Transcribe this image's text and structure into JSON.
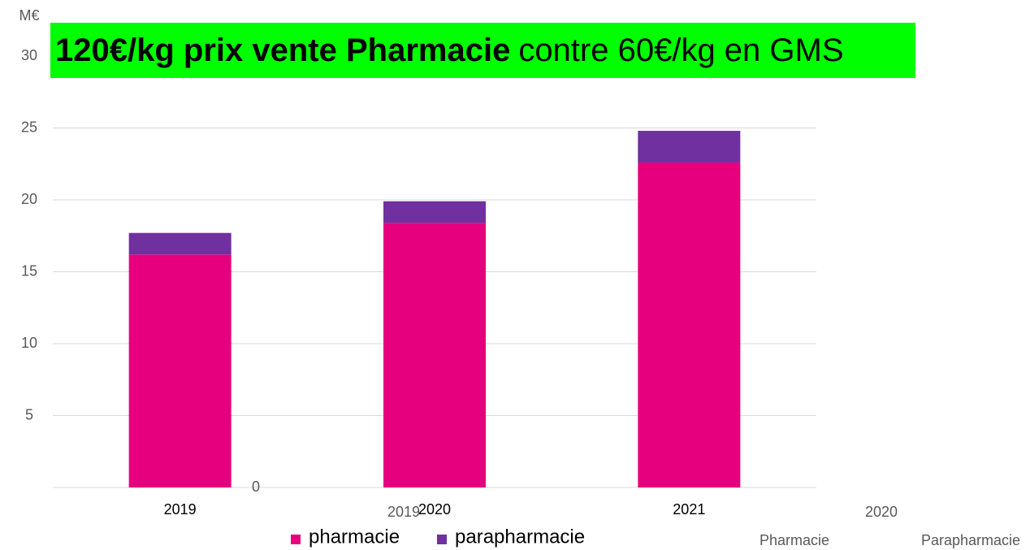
{
  "chart_data": {
    "type": "stacked_bar",
    "title_bold": "120€/kg prix vente Pharmacie",
    "title_rest": "contre 60€/kg en GMS",
    "y_axis_label": "M€",
    "categories": [
      "2019",
      "2020",
      "2021"
    ],
    "series": [
      {
        "name": "pharmacie",
        "color": "#e6007e",
        "values": [
          16.2,
          18.4,
          22.6
        ]
      },
      {
        "name": "parapharmacie",
        "color": "#7030a0",
        "values": [
          1.5,
          1.5,
          2.2
        ]
      }
    ],
    "ylim": [
      0,
      30
    ],
    "yticks": [
      0,
      5,
      10,
      15,
      20,
      25,
      30
    ],
    "grid": true,
    "extra_labels": [
      "2019",
      "2020",
      "Pharmacie",
      "Parapharmacie"
    ]
  }
}
